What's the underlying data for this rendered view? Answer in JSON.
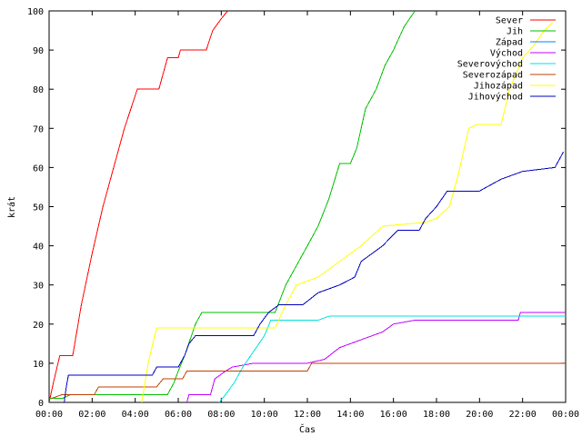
{
  "chart_data": {
    "type": "line",
    "title": "",
    "xlabel": "Čas",
    "ylabel": "krát",
    "xlim": [
      0,
      24
    ],
    "ylim": [
      0,
      100
    ],
    "grid": false,
    "legend_position": "top-right",
    "x_tick_labels": [
      "00:00",
      "02:00",
      "04:00",
      "06:00",
      "08:00",
      "10:00",
      "12:00",
      "14:00",
      "16:00",
      "18:00",
      "20:00",
      "22:00",
      "00:00"
    ],
    "x_tick_values": [
      0,
      2,
      4,
      6,
      8,
      10,
      12,
      14,
      16,
      18,
      20,
      22,
      24
    ],
    "y_tick_labels": [
      "0",
      "10",
      "20",
      "30",
      "40",
      "50",
      "60",
      "70",
      "80",
      "90",
      "100"
    ],
    "y_tick_values": [
      0,
      10,
      20,
      30,
      40,
      50,
      60,
      70,
      80,
      90,
      100
    ],
    "series": [
      {
        "name": "Sever",
        "color": "#ff0000",
        "points": [
          [
            0.0,
            0
          ],
          [
            0.2,
            5
          ],
          [
            0.5,
            12
          ],
          [
            1.1,
            12
          ],
          [
            1.5,
            25
          ],
          [
            2.0,
            38
          ],
          [
            2.5,
            50
          ],
          [
            3.0,
            60
          ],
          [
            3.5,
            70
          ],
          [
            3.8,
            75
          ],
          [
            4.1,
            80
          ],
          [
            5.1,
            80
          ],
          [
            5.5,
            88
          ],
          [
            6.0,
            88
          ],
          [
            6.1,
            90
          ],
          [
            7.3,
            90
          ],
          [
            7.6,
            95
          ],
          [
            8.0,
            98
          ],
          [
            8.3,
            100
          ]
        ]
      },
      {
        "name": "Jih",
        "color": "#00c000",
        "points": [
          [
            0.0,
            1
          ],
          [
            0.6,
            1
          ],
          [
            1.0,
            2
          ],
          [
            5.5,
            2
          ],
          [
            5.8,
            5
          ],
          [
            6.0,
            8
          ],
          [
            6.3,
            12
          ],
          [
            6.8,
            20
          ],
          [
            7.1,
            23
          ],
          [
            10.5,
            23
          ],
          [
            11.0,
            30
          ],
          [
            11.5,
            35
          ],
          [
            12.0,
            40
          ],
          [
            12.5,
            45
          ],
          [
            13.0,
            52
          ],
          [
            13.5,
            61
          ],
          [
            14.0,
            61
          ],
          [
            14.3,
            65
          ],
          [
            14.7,
            75
          ],
          [
            15.2,
            80
          ],
          [
            15.6,
            86
          ],
          [
            16.0,
            90
          ],
          [
            16.5,
            96
          ],
          [
            17.0,
            100
          ]
        ]
      },
      {
        "name": "Západ",
        "color": "#0080ff",
        "points": []
      },
      {
        "name": "Východ",
        "color": "#c000ff",
        "points": [
          [
            6.4,
            0
          ],
          [
            6.5,
            2
          ],
          [
            7.5,
            2
          ],
          [
            7.7,
            6
          ],
          [
            8.2,
            8
          ],
          [
            8.5,
            9
          ],
          [
            9.5,
            10
          ],
          [
            12.0,
            10
          ],
          [
            12.8,
            11
          ],
          [
            13.5,
            14
          ],
          [
            14.5,
            16
          ],
          [
            15.5,
            18
          ],
          [
            16.0,
            20
          ],
          [
            17.0,
            21
          ],
          [
            21.8,
            21
          ],
          [
            21.9,
            23
          ],
          [
            24.0,
            23
          ]
        ]
      },
      {
        "name": "Severovýchod",
        "color": "#00e0e0",
        "points": [
          [
            7.9,
            0
          ],
          [
            8.2,
            2
          ],
          [
            8.6,
            5
          ],
          [
            9.0,
            9
          ],
          [
            9.5,
            13
          ],
          [
            10.0,
            17
          ],
          [
            10.3,
            21
          ],
          [
            11.0,
            21
          ],
          [
            12.5,
            21
          ],
          [
            13.0,
            22
          ],
          [
            24.0,
            22
          ]
        ]
      },
      {
        "name": "Severozápad",
        "color": "#c04000",
        "points": [
          [
            0.1,
            1
          ],
          [
            0.6,
            2
          ],
          [
            2.1,
            2
          ],
          [
            2.3,
            4
          ],
          [
            5.0,
            4
          ],
          [
            5.3,
            6
          ],
          [
            6.2,
            6
          ],
          [
            6.4,
            8
          ],
          [
            12.0,
            8
          ],
          [
            12.2,
            10
          ],
          [
            24.0,
            10
          ]
        ]
      },
      {
        "name": "Jihozápad",
        "color": "#ffff00",
        "points": [
          [
            4.3,
            0
          ],
          [
            4.6,
            10
          ],
          [
            4.9,
            17
          ],
          [
            5.0,
            19
          ],
          [
            10.5,
            19
          ],
          [
            11.0,
            25
          ],
          [
            11.5,
            30
          ],
          [
            12.5,
            32
          ],
          [
            13.0,
            34
          ],
          [
            13.5,
            36
          ],
          [
            14.5,
            40
          ],
          [
            15.5,
            45
          ],
          [
            17.5,
            46
          ],
          [
            18.0,
            47
          ],
          [
            18.6,
            50
          ],
          [
            19.0,
            58
          ],
          [
            19.5,
            70
          ],
          [
            19.9,
            71
          ],
          [
            21.0,
            71
          ],
          [
            21.4,
            80
          ],
          [
            22.0,
            88
          ],
          [
            22.5,
            91
          ],
          [
            23.0,
            95
          ],
          [
            23.4,
            97
          ]
        ]
      },
      {
        "name": "Jihovýchod",
        "color": "#0000c0",
        "points": [
          [
            0.7,
            0
          ],
          [
            0.8,
            4
          ],
          [
            0.9,
            7
          ],
          [
            4.8,
            7
          ],
          [
            5.0,
            9
          ],
          [
            6.0,
            9
          ],
          [
            6.3,
            12
          ],
          [
            6.5,
            15
          ],
          [
            6.8,
            17
          ],
          [
            9.5,
            17
          ],
          [
            9.8,
            20
          ],
          [
            10.2,
            23
          ],
          [
            10.7,
            25
          ],
          [
            11.8,
            25
          ],
          [
            12.5,
            28
          ],
          [
            13.5,
            30
          ],
          [
            14.2,
            32
          ],
          [
            14.5,
            36
          ],
          [
            15.5,
            40
          ],
          [
            16.2,
            44
          ],
          [
            17.2,
            44
          ],
          [
            17.5,
            47
          ],
          [
            18.0,
            50
          ],
          [
            18.5,
            54
          ],
          [
            20.0,
            54
          ],
          [
            21.0,
            57
          ],
          [
            22.0,
            59
          ],
          [
            23.5,
            60
          ],
          [
            23.9,
            64
          ]
        ]
      }
    ]
  }
}
